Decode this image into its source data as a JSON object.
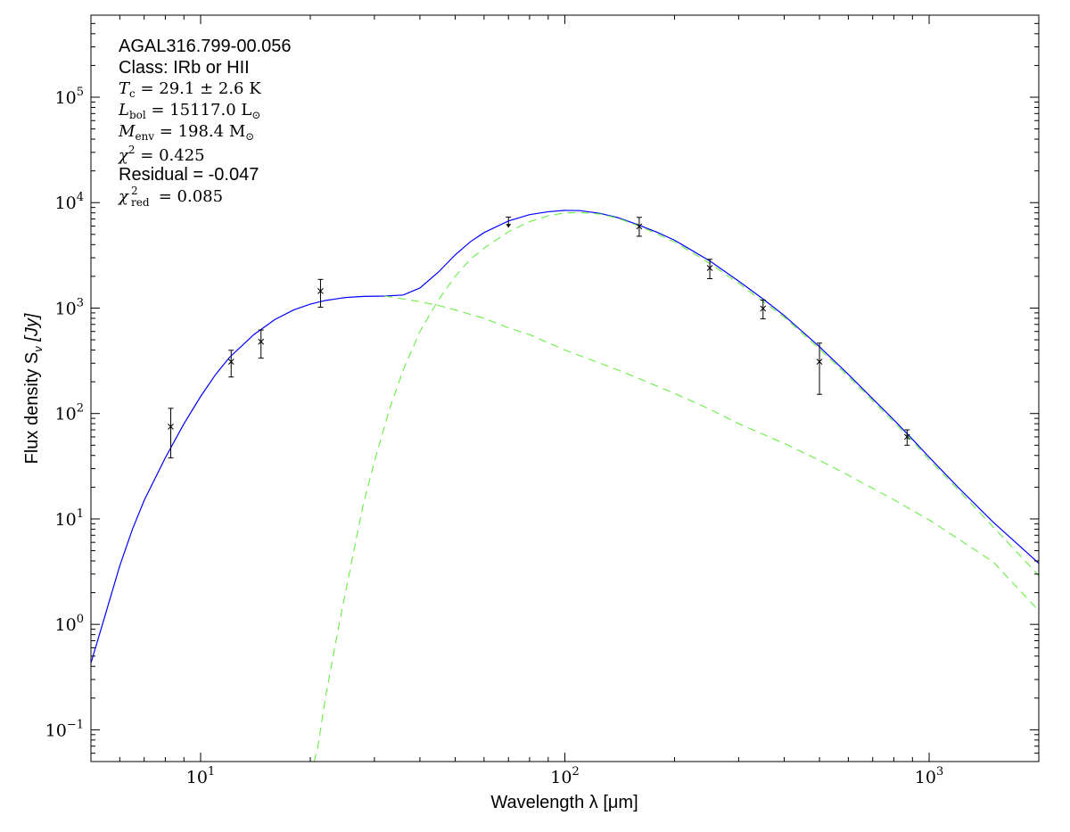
{
  "chart_data": {
    "type": "line",
    "xlabel": "Wavelength λ [μm]",
    "ylabel": "Flux density S",
    "ylabel_sub": "ν",
    "ylabel_unit": " [Jy]",
    "xscale": "log",
    "yscale": "log",
    "xlim": [
      5,
      2000
    ],
    "ylim": [
      0.05,
      600000
    ],
    "x_ticks": [
      {
        "value": 10,
        "base": "10",
        "exp": "1"
      },
      {
        "value": 100,
        "base": "10",
        "exp": "2"
      },
      {
        "value": 1000,
        "base": "10",
        "exp": "3"
      }
    ],
    "y_ticks": [
      {
        "value": 0.1,
        "base": "10",
        "exp": "−1"
      },
      {
        "value": 1,
        "base": "10",
        "exp": "0"
      },
      {
        "value": 10,
        "base": "10",
        "exp": "1"
      },
      {
        "value": 100,
        "base": "10",
        "exp": "2"
      },
      {
        "value": 1000,
        "base": "10",
        "exp": "3"
      },
      {
        "value": 10000,
        "base": "10",
        "exp": "4"
      },
      {
        "value": 100000,
        "base": "10",
        "exp": "5"
      }
    ],
    "annotations": {
      "source": "AGAL316.799-00.056",
      "class": "Class: IRb or HII",
      "tc": {
        "sym": "T",
        "sub": "c",
        "val": " = 29.1 ± 2.6 K"
      },
      "lbol": {
        "sym": "L",
        "sub": "bol",
        "val": " = 15117.0 L",
        "val_sub": "⊙"
      },
      "menv": {
        "sym": "M",
        "sub": "env",
        "val": " = 198.4 M",
        "val_sub": "⊙"
      },
      "chi2": {
        "sym": "χ",
        "sup": "2",
        "val": " = 0.425"
      },
      "residual": "Residual = -0.047",
      "chi2red": {
        "sym": "χ",
        "sup": "2",
        "sub": "red",
        "val": " = 0.085"
      }
    },
    "data_points": [
      {
        "x": 8.28,
        "y": 75,
        "ylo": 38,
        "yhi": 112
      },
      {
        "x": 12.13,
        "y": 310,
        "ylo": 222,
        "yhi": 398
      },
      {
        "x": 14.65,
        "y": 480,
        "ylo": 335,
        "yhi": 620
      },
      {
        "x": 21.34,
        "y": 1450,
        "ylo": 1020,
        "yhi": 1870
      }
    ],
    "upper_limits": [
      {
        "x": 70,
        "y": 7300,
        "arrow_to": 5800
      }
    ],
    "data_points_2": [
      {
        "x": 160,
        "y": 5950,
        "ylo": 4800,
        "yhi": 7250
      },
      {
        "x": 250,
        "y": 2400,
        "ylo": 1900,
        "yhi": 2900
      },
      {
        "x": 350,
        "y": 990,
        "ylo": 790,
        "yhi": 1190
      },
      {
        "x": 500,
        "y": 310,
        "ylo": 152,
        "yhi": 465
      },
      {
        "x": 870,
        "y": 60,
        "ylo": 50,
        "yhi": 70
      }
    ],
    "series": [
      {
        "role": "total fit",
        "color": "#0000ff",
        "style": "solid",
        "x": [
          5,
          5.5,
          6,
          6.5,
          7,
          8,
          9,
          10,
          11,
          12,
          14,
          16,
          18,
          20,
          22,
          25,
          28,
          32,
          36,
          40,
          45,
          50,
          55,
          60,
          70,
          80,
          90,
          100,
          110,
          125,
          140,
          160,
          180,
          200,
          250,
          300,
          350,
          400,
          500,
          600,
          700,
          800,
          900,
          1000,
          1200,
          1500,
          2000
        ],
        "y": [
          0.43,
          1.3,
          3.6,
          8,
          15,
          38,
          80,
          145,
          235,
          340,
          560,
          780,
          960,
          1090,
          1180,
          1260,
          1290,
          1300,
          1330,
          1550,
          2200,
          3200,
          4250,
          5200,
          6700,
          7700,
          8200,
          8450,
          8400,
          7900,
          7200,
          6100,
          5200,
          4400,
          2800,
          1800,
          1220,
          850,
          430,
          235,
          138,
          87,
          57,
          38.5,
          20,
          9.3,
          3.8
        ]
      },
      {
        "role": "warm component",
        "color": "#66ee44",
        "style": "dashed",
        "x": [
          32,
          36,
          40,
          45,
          50,
          60,
          70,
          80,
          100,
          125,
          150,
          200,
          250,
          300,
          400,
          500,
          600,
          700,
          800,
          1000,
          1200,
          1500,
          2000
        ],
        "y": [
          1300,
          1220,
          1150,
          1060,
          960,
          800,
          650,
          560,
          400,
          300,
          235,
          155,
          110,
          80,
          52,
          36,
          26,
          19.5,
          15.2,
          9.8,
          6.5,
          3.9,
          1.35
        ]
      },
      {
        "role": "cold envelope",
        "color": "#66ee44",
        "style": "dashed",
        "x": [
          20.5,
          21,
          22,
          24,
          26,
          28,
          30,
          33,
          36,
          40,
          45,
          50,
          55,
          60,
          70,
          80,
          90,
          100,
          110,
          125,
          140,
          160,
          200,
          250,
          300,
          400,
          500,
          600,
          700,
          800,
          900,
          1000,
          1200,
          1500,
          2000
        ],
        "y": [
          0.05,
          0.07,
          0.2,
          1.0,
          4,
          14,
          35,
          110,
          260,
          600,
          1200,
          2000,
          2900,
          3700,
          5300,
          6600,
          7500,
          8000,
          8050,
          7800,
          7100,
          6000,
          4250,
          2650,
          1720,
          820,
          410,
          225,
          132,
          83,
          55,
          36.5,
          19,
          8.4,
          2.9
        ]
      }
    ]
  }
}
